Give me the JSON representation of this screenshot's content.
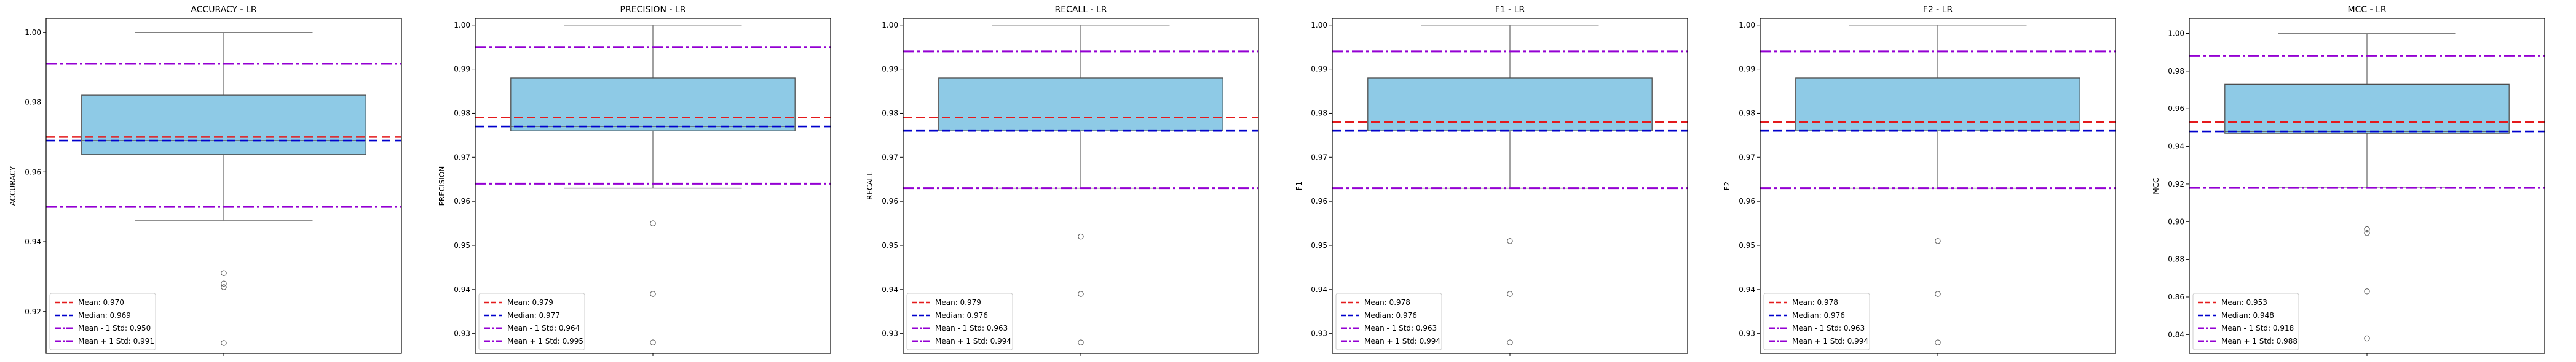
{
  "figure": {
    "background": "#ffffff"
  },
  "styles": {
    "box_fill": "#8ecae6",
    "box_edge": "#4d4d4d",
    "whisker": "#808080",
    "mean_color": "#e41a1c",
    "median_color": "#0000cc",
    "std_color": "#9400d3",
    "legend_labels": [
      "Mean",
      "Median",
      "Mean - 1 Std",
      "Mean + 1 Std"
    ]
  },
  "chart_data": [
    {
      "type": "box",
      "title": "ACCURACY - LR",
      "ylabel": "ACCURACY",
      "ylim": [
        0.908,
        1.004
      ],
      "yticks": [
        0.92,
        0.94,
        0.96,
        0.98,
        1.0
      ],
      "ytick_labels": [
        "0.92",
        "0.94",
        "0.96",
        "0.98",
        "1.00"
      ],
      "box": {
        "whisker_low": 0.946,
        "q1": 0.965,
        "median": 0.969,
        "q3": 0.982,
        "whisker_high": 1.0
      },
      "outliers": [
        0.931,
        0.928,
        0.927,
        0.911
      ],
      "mean": 0.97,
      "median_line": 0.969,
      "mean_minus_std": 0.95,
      "mean_plus_std": 0.991,
      "legend": [
        "Mean: 0.970",
        "Median: 0.969",
        "Mean - 1 Std: 0.950",
        "Mean + 1 Std: 0.991"
      ]
    },
    {
      "type": "box",
      "title": "PRECISION - LR",
      "ylabel": "PRECISION",
      "ylim": [
        0.9255,
        1.0015
      ],
      "yticks": [
        0.93,
        0.94,
        0.95,
        0.96,
        0.97,
        0.98,
        0.99,
        1.0
      ],
      "ytick_labels": [
        "0.93",
        "0.94",
        "0.95",
        "0.96",
        "0.97",
        "0.98",
        "0.99",
        "1.00"
      ],
      "box": {
        "whisker_low": 0.963,
        "q1": 0.976,
        "median": 0.977,
        "q3": 0.988,
        "whisker_high": 1.0
      },
      "outliers": [
        0.955,
        0.939,
        0.928
      ],
      "mean": 0.979,
      "median_line": 0.977,
      "mean_minus_std": 0.964,
      "mean_plus_std": 0.995,
      "legend": [
        "Mean: 0.979",
        "Median: 0.977",
        "Mean - 1 Std: 0.964",
        "Mean + 1 Std: 0.995"
      ]
    },
    {
      "type": "box",
      "title": "RECALL - LR",
      "ylabel": "RECALL",
      "ylim": [
        0.9255,
        1.0015
      ],
      "yticks": [
        0.93,
        0.94,
        0.95,
        0.96,
        0.97,
        0.98,
        0.99,
        1.0
      ],
      "ytick_labels": [
        "0.93",
        "0.94",
        "0.95",
        "0.96",
        "0.97",
        "0.98",
        "0.99",
        "1.00"
      ],
      "box": {
        "whisker_low": 0.963,
        "q1": 0.976,
        "median": 0.976,
        "q3": 0.988,
        "whisker_high": 1.0
      },
      "outliers": [
        0.952,
        0.939,
        0.928
      ],
      "mean": 0.979,
      "median_line": 0.976,
      "mean_minus_std": 0.963,
      "mean_plus_std": 0.994,
      "legend": [
        "Mean: 0.979",
        "Median: 0.976",
        "Mean - 1 Std: 0.963",
        "Mean + 1 Std: 0.994"
      ]
    },
    {
      "type": "box",
      "title": "F1 - LR",
      "ylabel": "F1",
      "ylim": [
        0.9255,
        1.0015
      ],
      "yticks": [
        0.93,
        0.94,
        0.95,
        0.96,
        0.97,
        0.98,
        0.99,
        1.0
      ],
      "ytick_labels": [
        "0.93",
        "0.94",
        "0.95",
        "0.96",
        "0.97",
        "0.98",
        "0.99",
        "1.00"
      ],
      "box": {
        "whisker_low": 0.963,
        "q1": 0.976,
        "median": 0.976,
        "q3": 0.988,
        "whisker_high": 1.0
      },
      "outliers": [
        0.951,
        0.939,
        0.928
      ],
      "mean": 0.978,
      "median_line": 0.976,
      "mean_minus_std": 0.963,
      "mean_plus_std": 0.994,
      "legend": [
        "Mean: 0.978",
        "Median: 0.976",
        "Mean - 1 Std: 0.963",
        "Mean + 1 Std: 0.994"
      ]
    },
    {
      "type": "box",
      "title": "F2 - LR",
      "ylabel": "F2",
      "ylim": [
        0.9255,
        1.0015
      ],
      "yticks": [
        0.93,
        0.94,
        0.95,
        0.96,
        0.97,
        0.98,
        0.99,
        1.0
      ],
      "ytick_labels": [
        "0.93",
        "0.94",
        "0.95",
        "0.96",
        "0.97",
        "0.98",
        "0.99",
        "1.00"
      ],
      "box": {
        "whisker_low": 0.963,
        "q1": 0.976,
        "median": 0.976,
        "q3": 0.988,
        "whisker_high": 1.0
      },
      "outliers": [
        0.951,
        0.939,
        0.928
      ],
      "mean": 0.978,
      "median_line": 0.976,
      "mean_minus_std": 0.963,
      "mean_plus_std": 0.994,
      "legend": [
        "Mean: 0.978",
        "Median: 0.976",
        "Mean - 1 Std: 0.963",
        "Mean + 1 Std: 0.994"
      ]
    },
    {
      "type": "box",
      "title": "MCC - LR",
      "ylabel": "MCC",
      "ylim": [
        0.83,
        1.008
      ],
      "yticks": [
        0.84,
        0.86,
        0.88,
        0.9,
        0.92,
        0.94,
        0.96,
        0.98,
        1.0
      ],
      "ytick_labels": [
        "0.84",
        "0.86",
        "0.88",
        "0.90",
        "0.92",
        "0.94",
        "0.96",
        "0.98",
        "1.00"
      ],
      "box": {
        "whisker_low": 0.918,
        "q1": 0.947,
        "median": 0.948,
        "q3": 0.973,
        "whisker_high": 1.0
      },
      "outliers": [
        0.896,
        0.894,
        0.863,
        0.838
      ],
      "mean": 0.953,
      "median_line": 0.948,
      "mean_minus_std": 0.918,
      "mean_plus_std": 0.988,
      "legend": [
        "Mean: 0.953",
        "Median: 0.948",
        "Mean - 1 Std: 0.918",
        "Mean + 1 Std: 0.988"
      ]
    }
  ]
}
